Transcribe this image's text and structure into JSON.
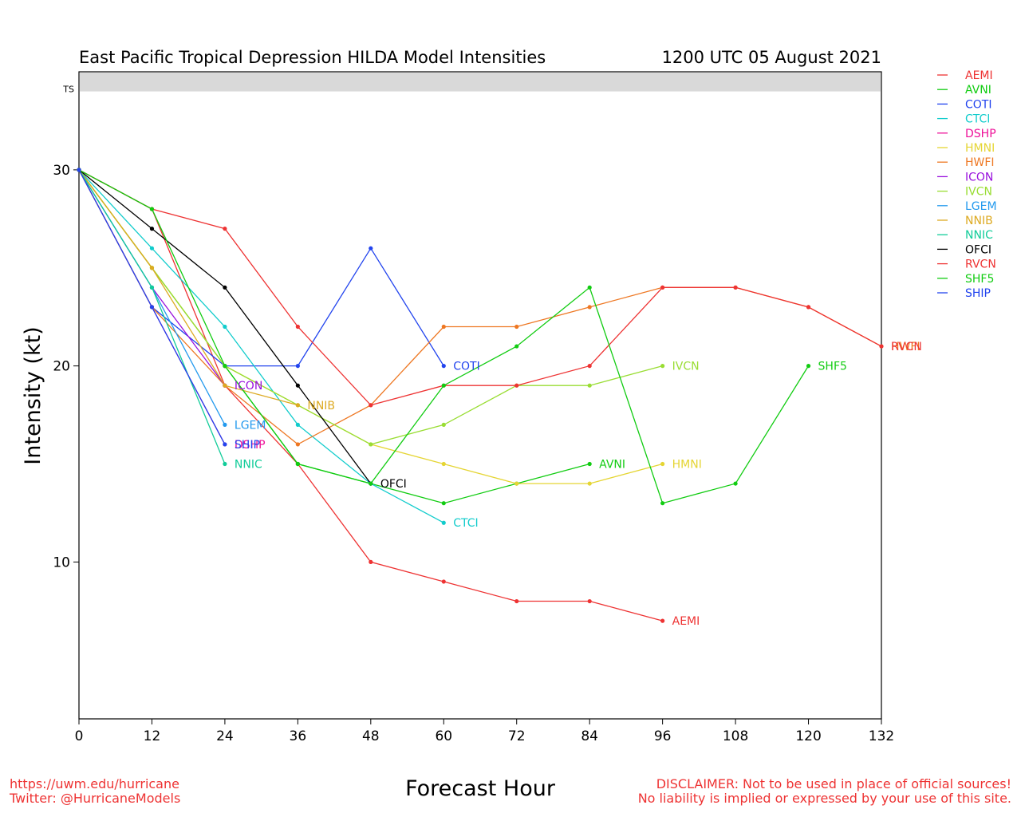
{
  "chart_data": {
    "type": "line",
    "title": "East Pacific Tropical Depression HILDA Model Intensities",
    "date": "1200 UTC 05 August 2021",
    "xlabel": "Forecast Hour",
    "ylabel": "Intensity (kt)",
    "xlim": [
      0,
      132
    ],
    "ylim": [
      2,
      35
    ],
    "xticks": [
      0,
      12,
      24,
      36,
      48,
      60,
      72,
      84,
      96,
      108,
      120,
      132
    ],
    "yticks": [
      10,
      20,
      30
    ],
    "ts_band": {
      "label": "TS",
      "from": 34,
      "to": 35
    },
    "legend_position": "right",
    "series": [
      {
        "name": "AEMI",
        "color": "#ee3333",
        "x": [
          0,
          12,
          24,
          36,
          48,
          60,
          72,
          84,
          96
        ],
        "y": [
          30,
          28,
          19,
          15,
          10,
          9,
          8,
          8,
          7
        ]
      },
      {
        "name": "AVNI",
        "color": "#11cc11",
        "x": [
          0,
          12,
          24,
          36,
          48,
          60,
          72,
          84
        ],
        "y": [
          30,
          25,
          20,
          15,
          14,
          13,
          14,
          15
        ]
      },
      {
        "name": "COTI",
        "color": "#2244ee",
        "x": [
          0,
          12,
          24,
          36,
          48,
          60
        ],
        "y": [
          30,
          23,
          20,
          20,
          26,
          20
        ]
      },
      {
        "name": "CTCI",
        "color": "#11cccc",
        "x": [
          0,
          12,
          24,
          36,
          48,
          60
        ],
        "y": [
          30,
          26,
          22,
          17,
          14,
          12
        ]
      },
      {
        "name": "DSHP",
        "color": "#ee1199",
        "x": [
          0,
          12,
          24
        ],
        "y": [
          30,
          23,
          16
        ]
      },
      {
        "name": "HMNI",
        "color": "#e5d533",
        "x": [
          0,
          12,
          24,
          36,
          48,
          60,
          72,
          84,
          96
        ],
        "y": [
          30,
          25,
          20,
          18,
          16,
          15,
          14,
          14,
          15
        ]
      },
      {
        "name": "HWFI",
        "color": "#ee7722",
        "x": [
          0,
          12,
          24,
          36,
          48,
          60,
          72,
          84,
          96,
          108,
          120,
          132
        ],
        "y": [
          30,
          23,
          19,
          16,
          18,
          22,
          22,
          23,
          24,
          24,
          23,
          21
        ]
      },
      {
        "name": "ICON",
        "color": "#9911dd",
        "x": [
          0,
          12,
          24
        ],
        "y": [
          30,
          24,
          19
        ]
      },
      {
        "name": "IVCN",
        "color": "#99dd33",
        "x": [
          0,
          12,
          24,
          36,
          48,
          60,
          72,
          84,
          96
        ],
        "y": [
          30,
          25,
          20,
          18,
          16,
          17,
          19,
          19,
          20
        ]
      },
      {
        "name": "LGEM",
        "color": "#2299ee",
        "x": [
          0,
          12,
          24
        ],
        "y": [
          30,
          24,
          17
        ]
      },
      {
        "name": "NNIB",
        "color": "#ddaa22",
        "x": [
          0,
          12,
          24,
          36
        ],
        "y": [
          30,
          25,
          19,
          18
        ]
      },
      {
        "name": "NNIC",
        "color": "#11cc99",
        "x": [
          0,
          12,
          24
        ],
        "y": [
          30,
          24,
          15
        ]
      },
      {
        "name": "OFCI",
        "color": "#000000",
        "x": [
          0,
          12,
          24,
          36,
          48
        ],
        "y": [
          30,
          27,
          24,
          19,
          14
        ]
      },
      {
        "name": "RVCN",
        "color": "#ee3333",
        "x": [
          0,
          12,
          24,
          36,
          48,
          60,
          72,
          84,
          96,
          108,
          120,
          132
        ],
        "y": [
          30,
          28,
          27,
          22,
          18,
          19,
          19,
          20,
          24,
          24,
          23,
          21
        ]
      },
      {
        "name": "SHF5",
        "color": "#11cc11",
        "x": [
          0,
          12,
          24,
          36,
          48,
          60,
          72,
          84,
          96,
          108,
          120
        ],
        "y": [
          30,
          28,
          20,
          15,
          14,
          19,
          21,
          24,
          13,
          14,
          20
        ]
      },
      {
        "name": "SHIP",
        "color": "#2244ee",
        "x": [
          0,
          12,
          24
        ],
        "y": [
          30,
          23,
          16
        ]
      }
    ],
    "end_labels": [
      {
        "text": "AEMI",
        "color": "#ee3333",
        "x": 96,
        "y": 7
      },
      {
        "text": "AVNI",
        "color": "#11cc11",
        "x": 84,
        "y": 15
      },
      {
        "text": "COTI",
        "color": "#2244ee",
        "x": 60,
        "y": 20
      },
      {
        "text": "CTCI",
        "color": "#11cccc",
        "x": 60,
        "y": 12
      },
      {
        "text": "DSHP",
        "color": "#ee1199",
        "x": 24,
        "y": 16
      },
      {
        "text": "HMNI",
        "color": "#e5d533",
        "x": 96,
        "y": 15
      },
      {
        "text": "HWFI",
        "color": "#ee7722",
        "x": 132,
        "y": 21
      },
      {
        "text": "ICON",
        "color": "#9911dd",
        "x": 24,
        "y": 19
      },
      {
        "text": "IVCN",
        "color": "#99dd33",
        "x": 96,
        "y": 20
      },
      {
        "text": "LGEM",
        "color": "#2299ee",
        "x": 24,
        "y": 17
      },
      {
        "text": "NNIB",
        "color": "#ddaa22",
        "x": 36,
        "y": 18
      },
      {
        "text": "NNIC",
        "color": "#11cc99",
        "x": 24,
        "y": 15
      },
      {
        "text": "OFCI",
        "color": "#000000",
        "x": 48,
        "y": 14
      },
      {
        "text": "RVCN",
        "color": "#ee3333",
        "x": 132,
        "y": 21
      },
      {
        "text": "SHF5",
        "color": "#11cc11",
        "x": 120,
        "y": 20
      },
      {
        "text": "SHIP",
        "color": "#2244ee",
        "x": 24,
        "y": 16
      }
    ]
  },
  "footer": {
    "url": "https://uwm.edu/hurricane",
    "twitter": "Twitter: @HurricaneModels",
    "disclaimer_line1": "DISCLAIMER: Not to be used in place of official sources!",
    "disclaimer_line2": "No liability is implied or expressed by your use of this site."
  }
}
